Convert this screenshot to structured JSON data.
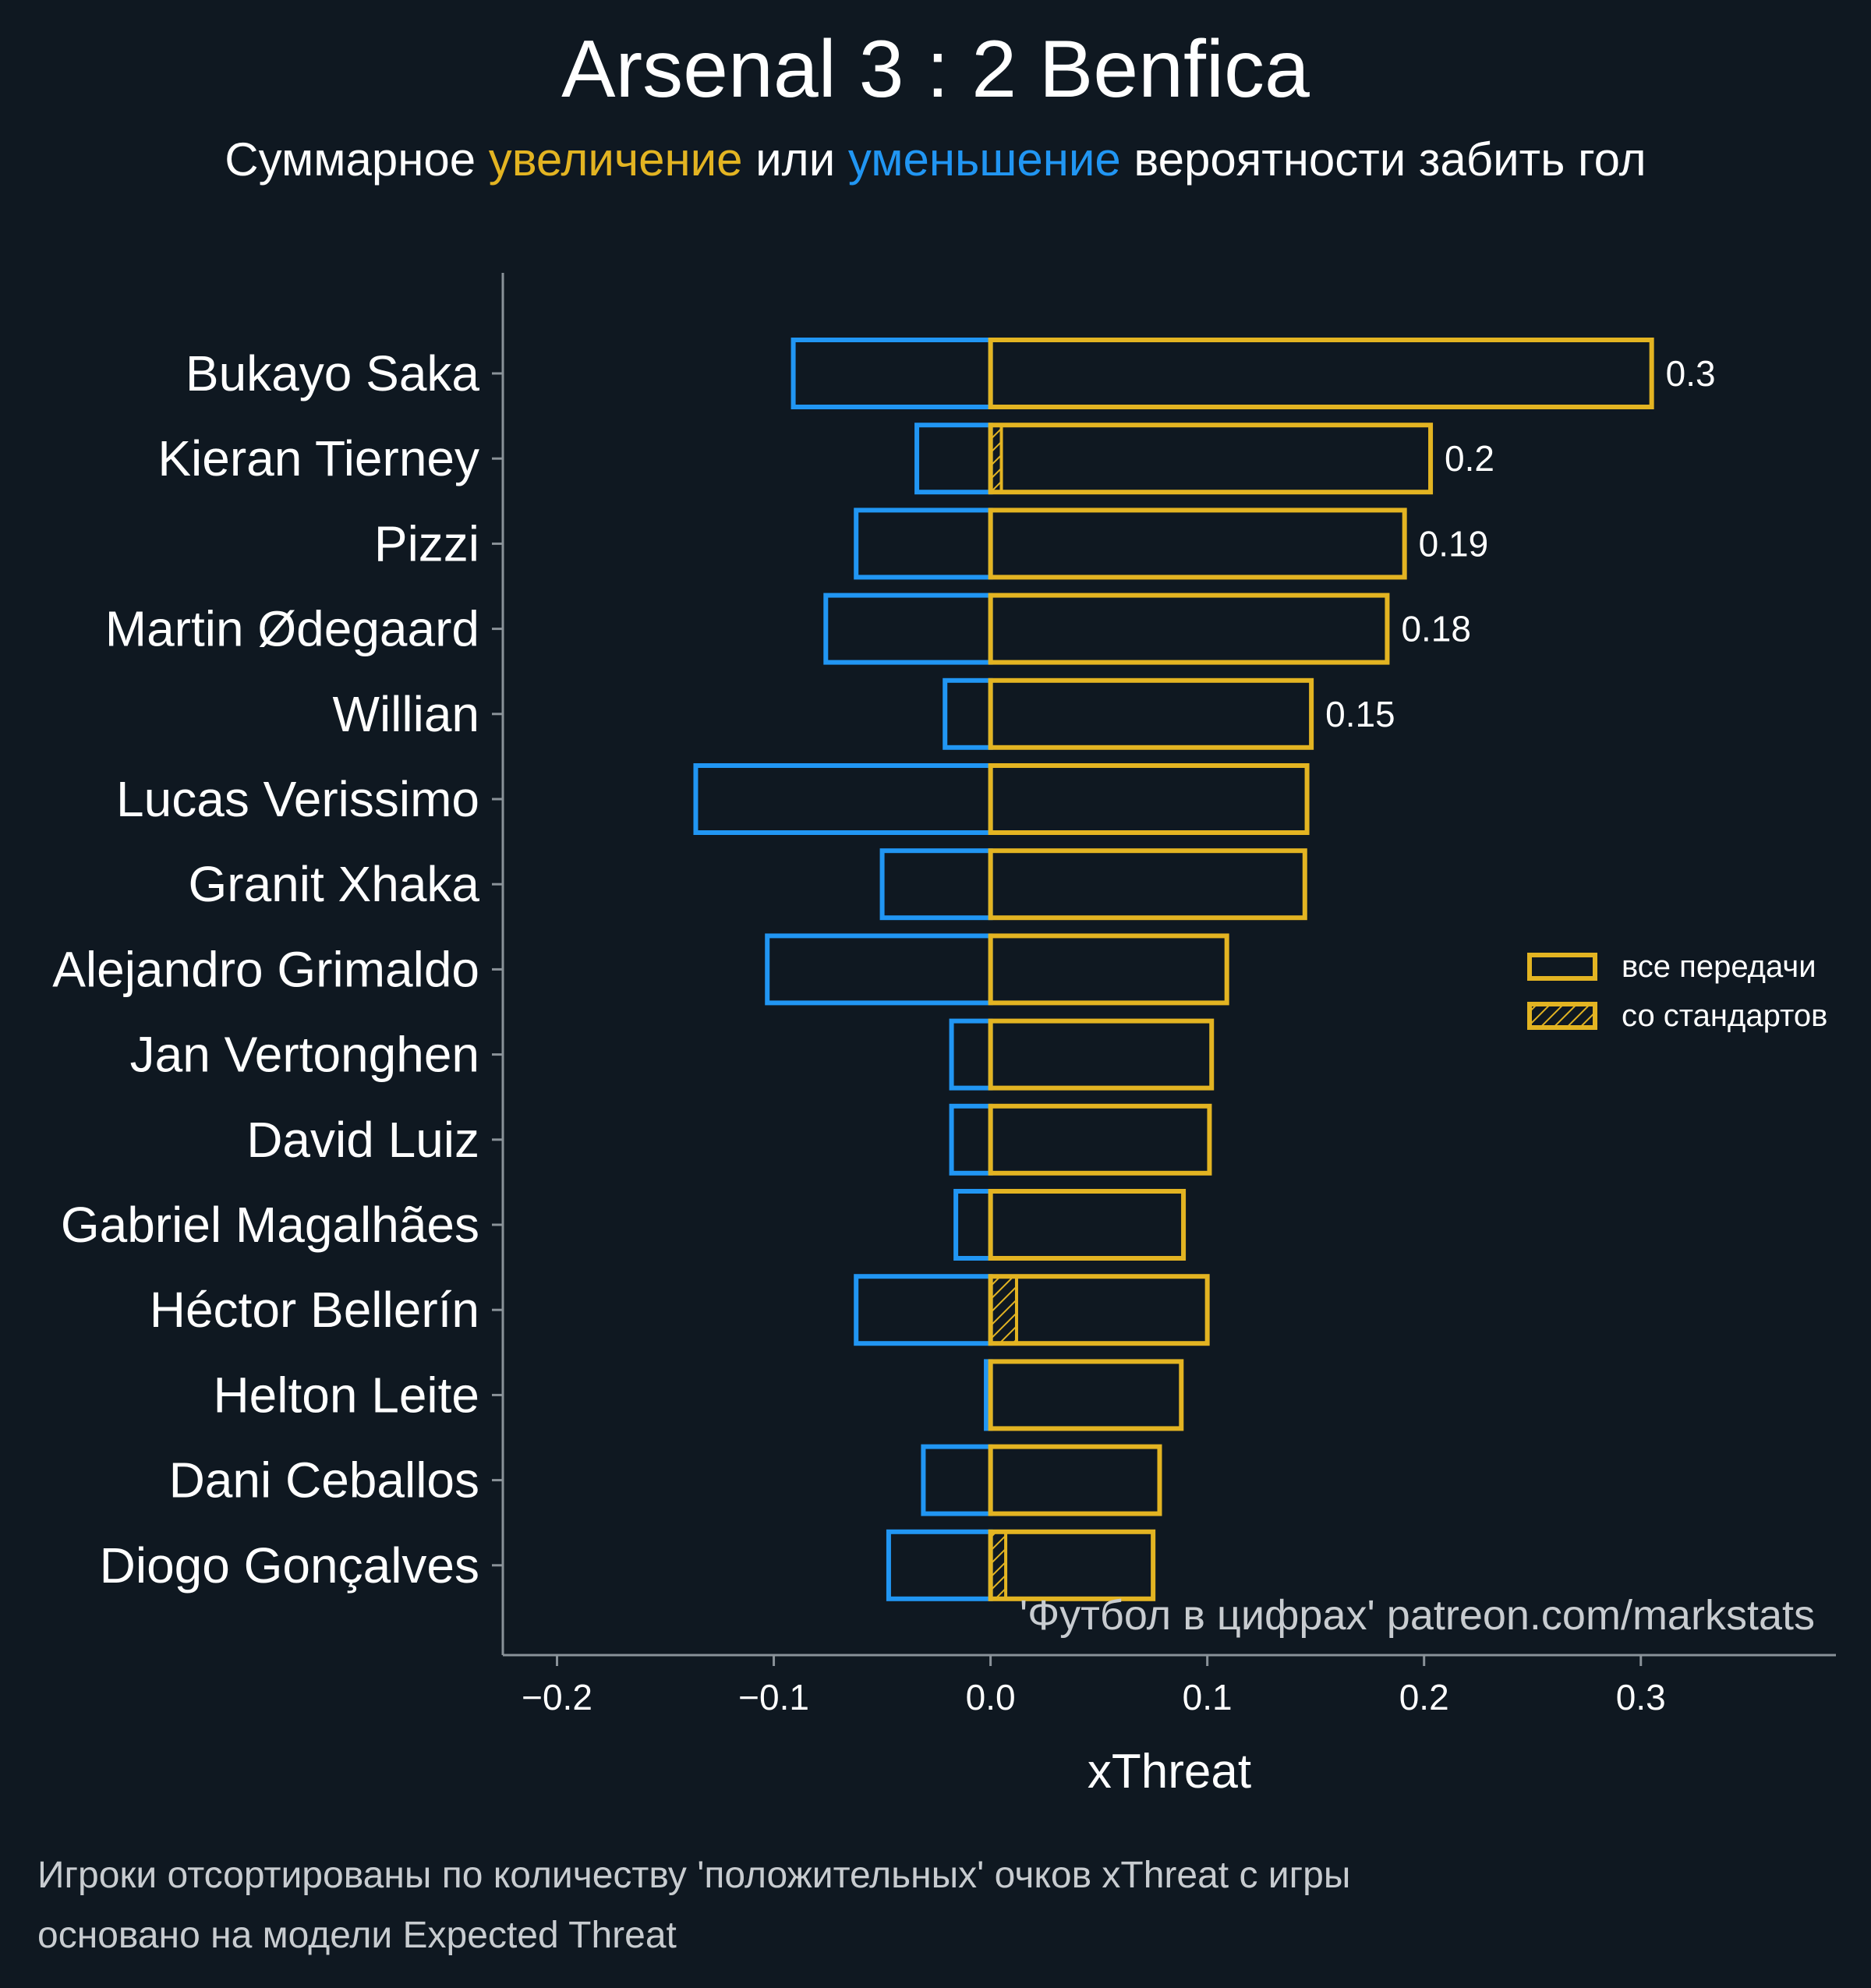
{
  "header": {
    "title": "Arsenal 3 : 2 Benfica",
    "subtitle_part1": "Суммарное ",
    "subtitle_up": "увеличение",
    "subtitle_part2": " или ",
    "subtitle_down": "уменьшение",
    "subtitle_part3": " вероятности забить гол"
  },
  "footer": {
    "line1": "Игроки отсортированы по количеству 'положительных' очков xThreat с игры",
    "line2": "основано на модели Expected Threat"
  },
  "colors": {
    "background": "#0f1821",
    "positive": "#e3b422",
    "negative": "#2196f3",
    "axis": "#8a9299",
    "text": "#ffffff",
    "muted_text": "#c8ccd0"
  },
  "chart_data": {
    "type": "bar",
    "orientation": "horizontal",
    "xlabel": "xThreat",
    "ylabel": "",
    "xlim": [
      -0.225,
      0.39
    ],
    "x_ticks": [
      -0.2,
      -0.1,
      0.0,
      0.1,
      0.2,
      0.3
    ],
    "x_tick_labels": [
      "−0.2",
      "−0.1",
      "0.0",
      "0.1",
      "0.2",
      "0.3"
    ],
    "categories": [
      "Bukayo Saka",
      "Kieran Tierney",
      "Pizzi",
      "Martin Ødegaard",
      "Willian",
      "Lucas Verissimo",
      "Granit Xhaka",
      "Alejandro Grimaldo",
      "Jan Vertonghen",
      "David Luiz",
      "Gabriel Magalhães",
      "Héctor Bellerín",
      "Helton Leite",
      "Dani Ceballos",
      "Diogo Gonçalves"
    ],
    "series": [
      {
        "name": "все передачи",
        "kind": "positive",
        "values": [
          0.305,
          0.203,
          0.191,
          0.183,
          0.148,
          0.146,
          0.145,
          0.109,
          0.102,
          0.101,
          0.089,
          0.1,
          0.088,
          0.078,
          0.075
        ]
      },
      {
        "name": "со стандартов",
        "kind": "positive-set-piece",
        "values": [
          0.0,
          0.005,
          0.0,
          0.0,
          0.0,
          0.0,
          0.0,
          0.0,
          0.0,
          0.0,
          0.0,
          0.012,
          0.0,
          0.0,
          0.007
        ]
      },
      {
        "kind": "negative",
        "values": [
          -0.091,
          -0.034,
          -0.062,
          -0.076,
          -0.021,
          -0.136,
          -0.05,
          -0.103,
          -0.018,
          -0.018,
          -0.016,
          -0.062,
          -0.002,
          -0.031,
          -0.047
        ]
      }
    ],
    "value_labels": [
      "0.3",
      "0.2",
      "0.19",
      "0.18",
      "0.15",
      "",
      "",
      "",
      "",
      "",
      "",
      "",
      "",
      "",
      ""
    ],
    "legend": {
      "position": "right",
      "items": [
        "все передачи",
        "со стандартов"
      ]
    },
    "annotation": "'Футбол в цифрах' patreon.com/markstats",
    "grid": false
  }
}
